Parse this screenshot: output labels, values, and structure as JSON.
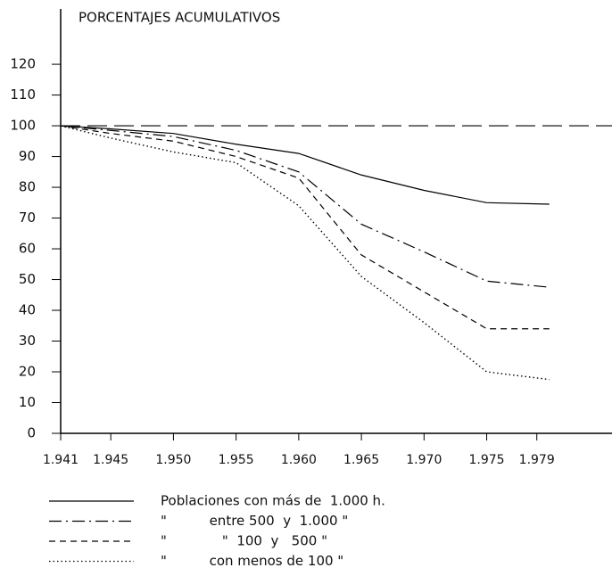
{
  "chart_data": {
    "type": "line",
    "title": "PORCENTAJES ACUMULATIVOS",
    "x": [
      1941,
      1945,
      1950,
      1955,
      1960,
      1965,
      1970,
      1975,
      1980
    ],
    "series": [
      {
        "name": "Poblaciones con más de  1.000 h.",
        "color": "#000000",
        "dash": "solid",
        "values": [
          100,
          99,
          97.5,
          94,
          91,
          84,
          79,
          75,
          74.5
        ]
      },
      {
        "name": "\"          entre 500  y  1.000 \"",
        "color": "#000000",
        "dash": "dashdot",
        "values": [
          100,
          98.5,
          96.5,
          92,
          85,
          68,
          59,
          49.5,
          47.5
        ]
      },
      {
        "name": "\"             \"  100  y   500 \"",
        "color": "#000000",
        "dash": "dashed",
        "values": [
          100,
          97.5,
          95,
          90,
          83,
          58,
          46,
          34,
          34
        ]
      },
      {
        "name": "\"          con menos de 100 \"",
        "color": "#000000",
        "dash": "dotted",
        "values": [
          100,
          96,
          91.5,
          88,
          74,
          51,
          36,
          20,
          17.5
        ]
      }
    ],
    "reference_lines": [
      {
        "y": 100,
        "dash": "long"
      }
    ],
    "xlim": [
      1941,
      1985
    ],
    "ylim": [
      0,
      138
    ],
    "xticks": [
      {
        "value": 1941,
        "label": "1.941"
      },
      {
        "value": 1945,
        "label": "1.945"
      },
      {
        "value": 1950,
        "label": "1.950"
      },
      {
        "value": 1955,
        "label": "1.955"
      },
      {
        "value": 1960,
        "label": "1.960"
      },
      {
        "value": 1965,
        "label": "1.965"
      },
      {
        "value": 1970,
        "label": "1.970"
      },
      {
        "value": 1975,
        "label": "1.975"
      },
      {
        "value": 1979,
        "label": "1.979"
      }
    ],
    "yticks": [
      0,
      10,
      20,
      30,
      40,
      50,
      60,
      70,
      80,
      90,
      100,
      110,
      120
    ],
    "grid": false
  }
}
